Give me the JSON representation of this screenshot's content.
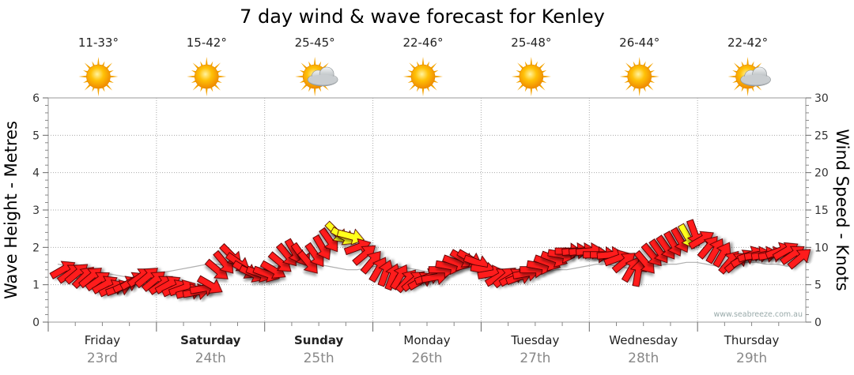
{
  "chart_data": {
    "type": "line",
    "title": "7 day wind & wave forecast for Kenley",
    "ylabel_left": "Wave Height - Metres",
    "ylabel_right": "Wind Speed - Knots",
    "ylim_left": [
      0,
      6
    ],
    "ylim_right": [
      0,
      30
    ],
    "yticks_left": [
      "0",
      "1",
      "2",
      "3",
      "4",
      "5",
      "6"
    ],
    "yticks_right": [
      "0",
      "5",
      "10",
      "15",
      "20",
      "25",
      "30"
    ],
    "grid": true,
    "credit": "www.seabreeze.com.au",
    "days": [
      {
        "name": "Friday",
        "date": "23rd",
        "temp": "11-33°",
        "icon": "sun-icon",
        "bold": false
      },
      {
        "name": "Saturday",
        "date": "24th",
        "temp": "15-42°",
        "icon": "sun-icon",
        "bold": true
      },
      {
        "name": "Sunday",
        "date": "25th",
        "temp": "25-45°",
        "icon": "sun-cloud-icon",
        "bold": true
      },
      {
        "name": "Monday",
        "date": "26th",
        "temp": "22-46°",
        "icon": "sun-icon",
        "bold": false
      },
      {
        "name": "Tuesday",
        "date": "27th",
        "temp": "25-48°",
        "icon": "sun-icon",
        "bold": false
      },
      {
        "name": "Wednesday",
        "date": "28th",
        "temp": "26-44°",
        "icon": "sun-icon",
        "bold": false
      },
      {
        "name": "Thursday",
        "date": "29th",
        "temp": "22-42°",
        "icon": "sun-cloud-icon",
        "bold": false
      }
    ],
    "wave_series": {
      "name": "Wave Height",
      "unit": "m",
      "values": [
        1.55,
        1.5,
        1.45,
        1.4,
        1.35,
        1.3,
        1.25,
        1.2,
        1.2,
        1.25,
        1.3,
        1.35,
        1.4,
        1.45,
        1.5,
        1.55,
        1.55,
        1.5,
        1.5,
        1.45,
        1.45,
        1.5,
        1.5,
        1.55,
        1.6,
        1.6,
        1.55,
        1.5,
        1.45,
        1.4,
        1.4,
        1.45,
        1.5,
        1.5,
        1.5,
        1.45,
        1.4,
        1.35,
        1.35,
        1.35,
        1.4,
        1.45,
        1.5,
        1.5,
        1.45,
        1.4,
        1.35,
        1.3,
        1.3,
        1.35,
        1.4,
        1.4,
        1.45,
        1.5,
        1.55,
        1.55,
        1.5,
        1.45,
        1.45,
        1.5,
        1.5,
        1.55,
        1.55,
        1.6,
        1.6,
        1.55,
        1.5,
        1.5,
        1.55,
        1.6,
        1.6,
        1.55,
        1.55,
        1.5,
        1.5
      ]
    },
    "wind_series": {
      "name": "Wind Speed",
      "unit": "knots",
      "values": [
        7,
        6.5,
        6.5,
        6,
        6,
        5.5,
        5,
        4.5,
        4.5,
        5,
        5.5,
        6,
        6,
        5.5,
        5,
        5,
        4.5,
        4.5,
        4,
        4,
        4.5,
        5,
        7,
        8,
        9,
        8,
        7,
        6.5,
        6.5,
        6.5,
        7,
        8,
        9,
        9.5,
        9,
        8,
        9,
        10,
        11,
        12,
        11.5,
        11.5,
        10,
        9,
        8,
        7,
        6.5,
        6,
        6,
        5.5,
        5.5,
        5.5,
        6,
        6,
        7,
        7.5,
        8,
        8.5,
        8.5,
        8,
        7,
        6.5,
        6,
        6,
        6,
        6,
        6.5,
        7,
        7.5,
        8,
        8.5,
        9,
        9.5,
        9.5,
        9.5,
        9.5,
        9,
        9,
        9,
        8.5,
        8,
        7,
        6.5,
        8,
        9,
        9.5,
        10,
        10.5,
        11,
        11.5,
        12,
        11,
        10,
        9.5,
        9,
        8,
        8,
        8.5,
        9,
        9,
        9,
        9,
        9.5,
        9.5,
        9,
        8.5
      ],
      "directions_deg": [
        120,
        125,
        130,
        135,
        130,
        125,
        120,
        115,
        110,
        115,
        120,
        125,
        130,
        130,
        125,
        120,
        115,
        110,
        105,
        100,
        100,
        60,
        50,
        40,
        45,
        55,
        60,
        65,
        70,
        70,
        60,
        50,
        40,
        30,
        35,
        40,
        35,
        30,
        35,
        45,
        60,
        75,
        110,
        130,
        140,
        150,
        160,
        160,
        150,
        140,
        130,
        120,
        110,
        100,
        90,
        80,
        70,
        60,
        60,
        70,
        80,
        100,
        120,
        130,
        120,
        110,
        100,
        90,
        80,
        70,
        70,
        80,
        90,
        95,
        95,
        95,
        90,
        90,
        95,
        110,
        130,
        150,
        170,
        40,
        40,
        35,
        35,
        30,
        30,
        30,
        20,
        120,
        140,
        150,
        150,
        140,
        130,
        120,
        110,
        100,
        100,
        100,
        110,
        120,
        125,
        130
      ],
      "highlight": [
        false,
        false,
        false,
        false,
        false,
        false,
        false,
        false,
        false,
        false,
        false,
        false,
        false,
        false,
        false,
        false,
        false,
        false,
        false,
        false,
        false,
        false,
        false,
        false,
        false,
        false,
        false,
        false,
        false,
        false,
        false,
        false,
        false,
        false,
        false,
        false,
        false,
        false,
        false,
        true,
        true,
        true,
        false,
        false,
        false,
        false,
        false,
        false,
        false,
        false,
        false,
        false,
        false,
        false,
        false,
        false,
        false,
        false,
        false,
        false,
        false,
        false,
        false,
        false,
        false,
        false,
        false,
        false,
        false,
        false,
        false,
        false,
        false,
        false,
        false,
        false,
        false,
        false,
        false,
        false,
        false,
        false,
        false,
        false,
        false,
        false,
        false,
        false,
        false,
        true,
        false,
        false,
        false,
        false,
        false,
        false,
        false,
        false,
        false,
        false,
        false,
        false,
        false,
        false,
        false,
        false
      ]
    }
  }
}
